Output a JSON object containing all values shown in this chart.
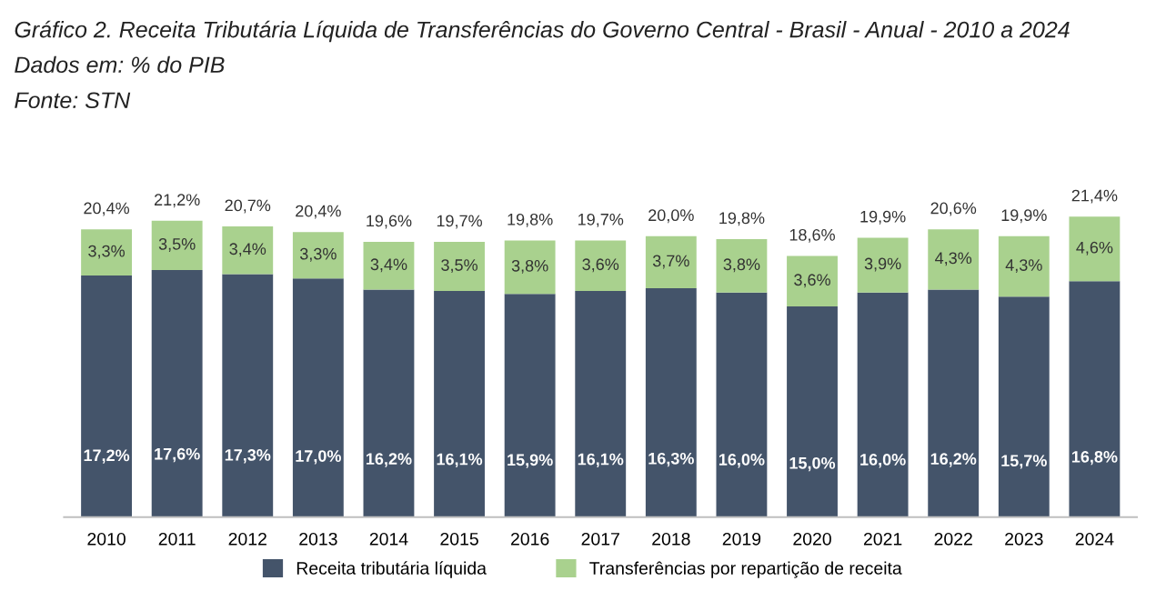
{
  "chart_data": {
    "type": "bar",
    "title": "Gráfico 2. Receita Tributária Líquida de Transferências do Governo Central - Brasil - Anual - 2010 a 2024",
    "subtitle": "Dados em: % do PIB",
    "annotations": [
      "Fonte: STN"
    ],
    "categories": [
      "2010",
      "2011",
      "2012",
      "2013",
      "2014",
      "2015",
      "2016",
      "2017",
      "2018",
      "2019",
      "2020",
      "2021",
      "2022",
      "2023",
      "2024"
    ],
    "stacked": true,
    "legend": "bottom",
    "grid": false,
    "series": [
      {
        "name": "Receita tributária líquida",
        "color": "#44546a",
        "values": [
          17.2,
          17.6,
          17.3,
          17.0,
          16.2,
          16.1,
          15.9,
          16.1,
          16.3,
          16.0,
          15.0,
          16.0,
          16.2,
          15.7,
          16.8
        ],
        "value_labels": [
          "17,2%",
          "17,6%",
          "17,3%",
          "17,0%",
          "16,2%",
          "16,1%",
          "15,9%",
          "16,1%",
          "16,3%",
          "16,0%",
          "15,0%",
          "16,0%",
          "16,2%",
          "15,7%",
          "16,8%"
        ]
      },
      {
        "name": "Transferências por repartição de receita",
        "color": "#a9d18e",
        "values": [
          3.3,
          3.5,
          3.4,
          3.3,
          3.4,
          3.5,
          3.8,
          3.6,
          3.7,
          3.8,
          3.6,
          3.9,
          4.3,
          4.3,
          4.6
        ],
        "value_labels": [
          "3,3%",
          "3,5%",
          "3,4%",
          "3,3%",
          "3,4%",
          "3,5%",
          "3,8%",
          "3,6%",
          "3,7%",
          "3,8%",
          "3,6%",
          "3,9%",
          "4,3%",
          "4,3%",
          "4,6%"
        ]
      }
    ],
    "totals": [
      "20,4%",
      "21,2%",
      "20,7%",
      "20,4%",
      "19,6%",
      "19,7%",
      "19,8%",
      "19,7%",
      "20,0%",
      "19,8%",
      "18,6%",
      "19,9%",
      "20,6%",
      "19,9%",
      "21,4%"
    ]
  }
}
